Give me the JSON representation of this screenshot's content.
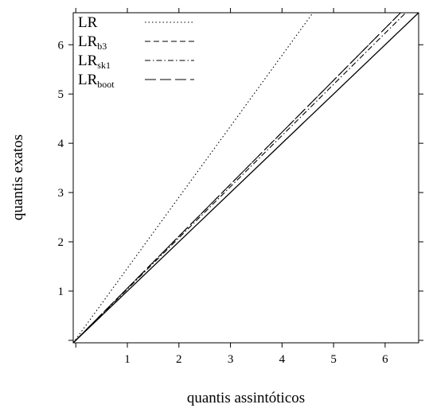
{
  "chart_data": {
    "type": "line",
    "title": "",
    "xlabel": "quantis assintóticos",
    "ylabel": "quantis exatos",
    "xlim": [
      -0.05,
      6.65
    ],
    "ylim": [
      -0.05,
      6.65
    ],
    "xticks": [
      "1",
      "2",
      "3",
      "4",
      "5",
      "6"
    ],
    "yticks": [
      "1",
      "2",
      "3",
      "4",
      "5",
      "6"
    ],
    "grid": false,
    "legend_position": "top-left",
    "reference_line": {
      "x": [
        -0.05,
        6.65
      ],
      "y": [
        -0.05,
        6.65
      ],
      "style": "solid"
    },
    "series": [
      {
        "name": "LR",
        "name_main": "LR",
        "name_sub": "",
        "style": "dotted",
        "x": [
          -0.05,
          4.6
        ],
        "y": [
          -0.05,
          6.65
        ]
      },
      {
        "name": "LRb3",
        "name_main": "LR",
        "name_sub": "b3",
        "style": "dashed",
        "x": [
          -0.05,
          6.3
        ],
        "y": [
          -0.05,
          6.65
        ]
      },
      {
        "name": "LRsk1",
        "name_main": "LR",
        "name_sub": "sk1",
        "style": "dashdot",
        "x": [
          -0.05,
          6.4
        ],
        "y": [
          -0.05,
          6.65
        ]
      },
      {
        "name": "LRboot",
        "name_main": "LR",
        "name_sub": "boot",
        "style": "longdash",
        "x": [
          -0.05,
          6.3
        ],
        "y": [
          -0.05,
          6.65
        ]
      }
    ]
  }
}
